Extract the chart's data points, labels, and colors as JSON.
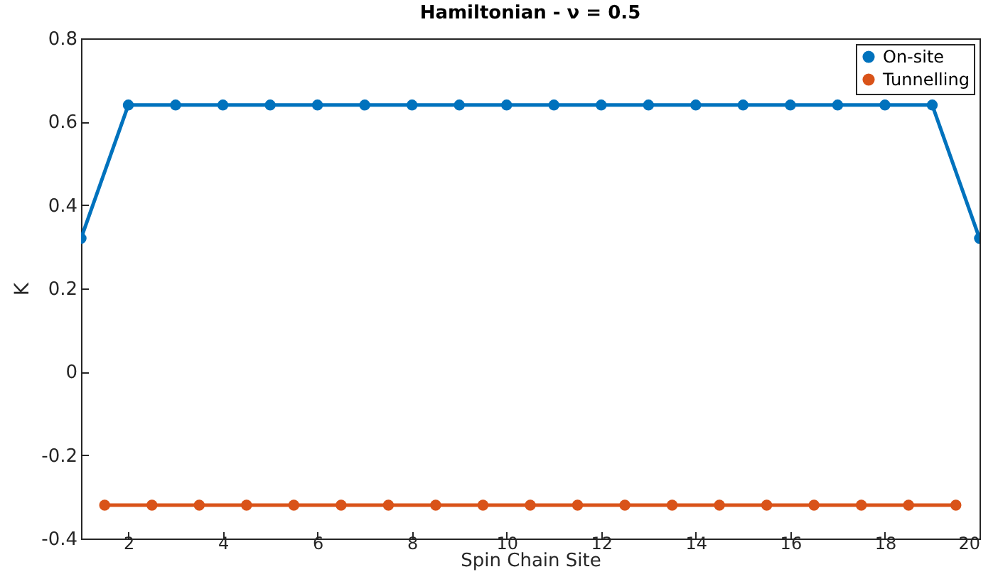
{
  "chart_data": {
    "type": "line",
    "title": "Hamiltonian - ν = 0.5",
    "xlabel": "Spin Chain Site",
    "ylabel": "K",
    "xlim": [
      1,
      20
    ],
    "xticks": [
      2,
      4,
      6,
      8,
      10,
      12,
      14,
      16,
      18,
      20
    ],
    "ylim": [
      -0.4,
      0.8
    ],
    "yticks": [
      -0.4,
      -0.2,
      {
        "value": 0,
        "label": "0"
      },
      0.2,
      0.4,
      0.6,
      0.8
    ],
    "grid": false,
    "legend": "top right",
    "marker": "circle",
    "line_style": "solid",
    "series": [
      {
        "name": "On-site",
        "color": "#0072bd",
        "x": [
          1,
          2,
          3,
          4,
          5,
          6,
          7,
          8,
          9,
          10,
          11,
          12,
          13,
          14,
          15,
          16,
          17,
          18,
          19,
          20
        ],
        "values": [
          0.32,
          0.64,
          0.64,
          0.64,
          0.64,
          0.64,
          0.64,
          0.64,
          0.64,
          0.64,
          0.64,
          0.64,
          0.64,
          0.64,
          0.64,
          0.64,
          0.64,
          0.64,
          0.64,
          0.32
        ]
      },
      {
        "name": "Tunnelling",
        "color": "#d95319",
        "x": [
          1.5,
          2.5,
          3.5,
          4.5,
          5.5,
          6.5,
          7.5,
          8.5,
          9.5,
          10.5,
          11.5,
          12.5,
          13.5,
          14.5,
          15.5,
          16.5,
          17.5,
          18.5,
          19.5
        ],
        "values": [
          -0.32,
          -0.32,
          -0.32,
          -0.32,
          -0.32,
          -0.32,
          -0.32,
          -0.32,
          -0.32,
          -0.32,
          -0.32,
          -0.32,
          -0.32,
          -0.32,
          -0.32,
          -0.32,
          -0.32,
          -0.32,
          -0.32
        ]
      }
    ]
  }
}
